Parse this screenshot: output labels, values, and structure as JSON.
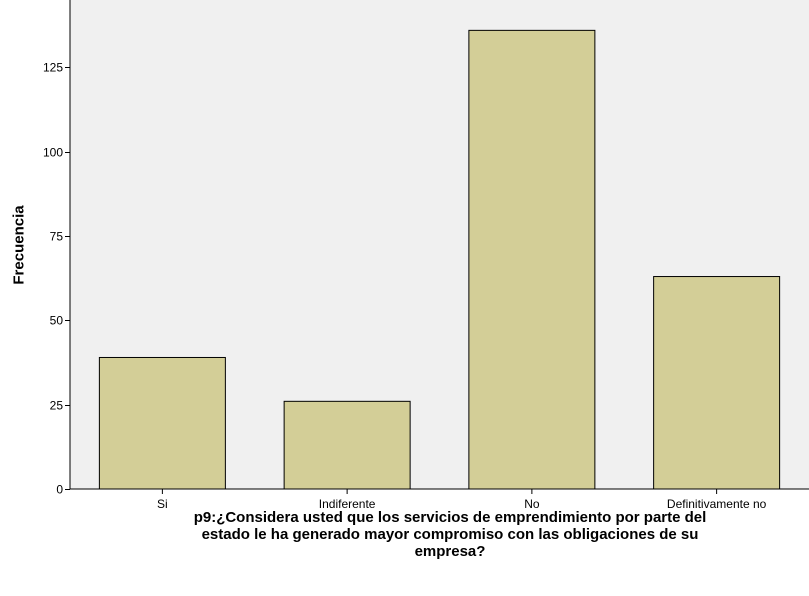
{
  "chart_data": {
    "type": "bar",
    "categories": [
      "Si",
      "Indiferente",
      "No",
      "Definitivamente no"
    ],
    "values": [
      39,
      26,
      136,
      63
    ],
    "title": "",
    "xlabel_lines": [
      "p9:¿Considera usted que los servicios de emprendimiento por parte del",
      "estado le ha generado mayor compromiso con las obligaciones de su",
      "empresa?"
    ],
    "ylabel": "Frecuencia",
    "ylim": [
      0,
      145
    ],
    "yticks": [
      0,
      25,
      50,
      75,
      100,
      125
    ],
    "grid": false,
    "colors": {
      "plot_background": "#f0f0f0",
      "bar_fill": "#d3ce97",
      "bar_stroke": "#000000"
    }
  }
}
